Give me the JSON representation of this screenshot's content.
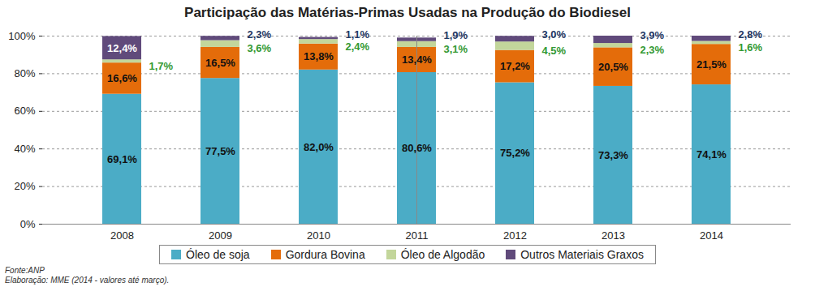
{
  "chart_data": {
    "type": "bar",
    "title": "Participação das Matérias-Primas Usadas na Produção do Biodiesel",
    "categories": [
      "2008",
      "2009",
      "2010",
      "2011",
      "2012",
      "2013",
      "2014"
    ],
    "stacked": true,
    "data_labels": true,
    "grid": true,
    "legend": "bottom",
    "ylim": [
      0,
      100
    ],
    "yticks": [
      {
        "value": 0,
        "label": "0%"
      },
      {
        "value": 20,
        "label": "20%"
      },
      {
        "value": 40,
        "label": "40%"
      },
      {
        "value": 60,
        "label": "60%"
      },
      {
        "value": 80,
        "label": "80%"
      },
      {
        "value": 100,
        "label": "100%"
      }
    ],
    "series": [
      {
        "name": "Óleo de soja",
        "color": "#4bacc6",
        "values": [
          69.1,
          77.5,
          82.0,
          80.6,
          75.2,
          73.3,
          74.1
        ],
        "value_labels": [
          "69,1%",
          "77,5%",
          "82,0%",
          "80,6%",
          "75,2%",
          "73,3%",
          "74,1%"
        ]
      },
      {
        "name": "Gordura Bovina",
        "color": "#e46c0a",
        "values": [
          16.6,
          16.5,
          13.8,
          13.4,
          17.2,
          20.5,
          21.5
        ],
        "value_labels": [
          "16,6%",
          "16,5%",
          "13,8%",
          "13,4%",
          "17,2%",
          "20,5%",
          "21,5%"
        ]
      },
      {
        "name": "Óleo de Algodão",
        "color": "#c3d69b",
        "values": [
          1.7,
          3.6,
          2.4,
          3.1,
          4.5,
          2.3,
          1.6
        ],
        "value_labels": [
          "1,7%",
          "3,6%",
          "2,4%",
          "3,1%",
          "4,5%",
          "2,3%",
          "1,6%"
        ]
      },
      {
        "name": "Outros Materiais Graxos",
        "color": "#604a7b",
        "values": [
          12.4,
          2.3,
          1.1,
          1.9,
          3.0,
          3.9,
          2.8
        ],
        "value_labels": [
          "12,4%",
          "2,3%",
          "1,1%",
          "1,9%",
          "3,0%",
          "3,9%",
          "2,8%"
        ]
      }
    ],
    "source": "Fonte:ANP",
    "note": "Elaboração: MME (2014 - valores até março)."
  }
}
